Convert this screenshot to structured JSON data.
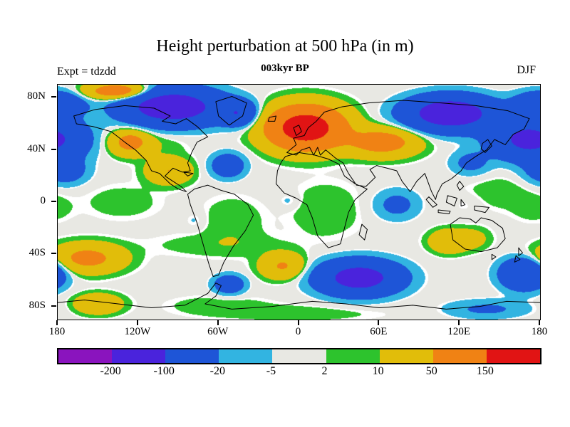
{
  "header": {
    "title": "Height perturbation at 500 hPa (in m)",
    "subtitle": "003kyr BP",
    "left_label": "Expt = tdzdd",
    "right_label": "DJF"
  },
  "chart_data": {
    "type": "heatmap",
    "title": "Height perturbation at 500 hPa (in m)",
    "subtitle": "003kyr BP",
    "experiment": "tdzdd",
    "season": "DJF",
    "units": "m",
    "projection": "equirectangular world map, lon -180..180, lat -90..90",
    "x_ticks": [
      {
        "label": "180",
        "lon": -180
      },
      {
        "label": "120W",
        "lon": -120
      },
      {
        "label": "60W",
        "lon": -60
      },
      {
        "label": "0",
        "lon": 0
      },
      {
        "label": "60E",
        "lon": 60
      },
      {
        "label": "120E",
        "lon": 120
      },
      {
        "label": "180",
        "lon": 180
      }
    ],
    "y_ticks": [
      {
        "label": "80N",
        "lat": 80
      },
      {
        "label": "40N",
        "lat": 40
      },
      {
        "label": "0",
        "lat": 0
      },
      {
        "label": "40S",
        "lat": -40
      },
      {
        "label": "80S",
        "lat": -80
      }
    ],
    "contour_levels": [
      -200,
      -100,
      -20,
      -5,
      2,
      10,
      50,
      150
    ],
    "palette": [
      "#8a14be",
      "#4a23dc",
      "#1e55d7",
      "#32b4e1",
      "#e8e8e3",
      "#2dc32d",
      "#e1bd0a",
      "#f08214",
      "#e11414"
    ],
    "colorbar_labels": [
      "-200",
      "-100",
      "-20",
      "-5",
      "2",
      "10",
      "50",
      "150"
    ],
    "anomaly_centers": [
      {
        "lon": -95,
        "lat": 73,
        "amp": -170,
        "rlon": 34,
        "rlat": 13
      },
      {
        "lon": -45,
        "lat": 68,
        "amp": -85,
        "rlon": 13,
        "rlat": 9
      },
      {
        "lon": 5,
        "lat": 57,
        "amp": 230,
        "rlon": 26,
        "rlat": 15
      },
      {
        "lon": 62,
        "lat": 46,
        "amp": 85,
        "rlon": 24,
        "rlat": 10
      },
      {
        "lon": 113,
        "lat": 68,
        "amp": -180,
        "rlon": 30,
        "rlat": 12
      },
      {
        "lon": 172,
        "lat": 48,
        "amp": -130,
        "rlon": 26,
        "rlat": 14
      },
      {
        "lon": -135,
        "lat": 85,
        "amp": 100,
        "rlon": 22,
        "rlat": 6
      },
      {
        "lon": 180,
        "lat": 75,
        "amp": -80,
        "rlon": 18,
        "rlat": 9
      },
      {
        "lon": -126,
        "lat": 46,
        "amp": 75,
        "rlon": 14,
        "rlat": 9
      },
      {
        "lon": -100,
        "lat": 45,
        "amp": 7,
        "rlon": 18,
        "rlat": 10
      },
      {
        "lon": -97,
        "lat": 24,
        "amp": 50,
        "rlon": 15,
        "rlat": 9
      },
      {
        "lon": -53,
        "lat": 28,
        "amp": -55,
        "rlon": 12,
        "rlat": 9
      },
      {
        "lon": -175,
        "lat": 24,
        "amp": -45,
        "rlon": 16,
        "rlat": 10
      },
      {
        "lon": -50,
        "lat": -15,
        "amp": 9,
        "rlon": 22,
        "rlat": 18
      },
      {
        "lon": 20,
        "lat": -6,
        "amp": 9,
        "rlon": 26,
        "rlat": 20
      },
      {
        "lon": -8,
        "lat": 1,
        "amp": -10,
        "rlon": 8,
        "rlat": 6
      },
      {
        "lon": 73,
        "lat": -2,
        "amp": -30,
        "rlon": 16,
        "rlat": 11
      },
      {
        "lon": 150,
        "lat": 8,
        "amp": 8,
        "rlon": 26,
        "rlat": 13
      },
      {
        "lon": 124,
        "lat": -2,
        "amp": -7,
        "rlon": 12,
        "rlat": 8
      },
      {
        "lon": -132,
        "lat": 0,
        "amp": 7,
        "rlon": 28,
        "rlat": 13
      },
      {
        "lon": -78,
        "lat": -14,
        "amp": -9,
        "rlon": 8,
        "rlat": 7
      },
      {
        "lon": 175,
        "lat": -5,
        "amp": 7,
        "rlon": 15,
        "rlat": 10
      },
      {
        "lon": 128,
        "lat": 30,
        "amp": -30,
        "rlon": 14,
        "rlat": 9
      },
      {
        "lon": -158,
        "lat": -43,
        "amp": 70,
        "rlon": 24,
        "rlat": 10
      },
      {
        "lon": -60,
        "lat": -33,
        "amp": 7,
        "rlon": 50,
        "rlat": 9
      },
      {
        "lon": -52,
        "lat": -63,
        "amp": -55,
        "rlon": 11,
        "rlat": 7
      },
      {
        "lon": -12,
        "lat": -49,
        "amp": 55,
        "rlon": 15,
        "rlat": 9
      },
      {
        "lon": 45,
        "lat": -58,
        "amp": -150,
        "rlon": 28,
        "rlat": 12
      },
      {
        "lon": 112,
        "lat": -30,
        "amp": 45,
        "rlon": 13,
        "rlat": 8
      },
      {
        "lon": 130,
        "lat": -28,
        "amp": 18,
        "rlon": 12,
        "rlat": 8
      },
      {
        "lon": 168,
        "lat": -55,
        "amp": -100,
        "rlon": 16,
        "rlat": 11
      },
      {
        "lon": -150,
        "lat": -78,
        "amp": 45,
        "rlon": 16,
        "rlat": 7
      },
      {
        "lon": -60,
        "lat": -79,
        "amp": 8,
        "rlon": 35,
        "rlat": 7
      },
      {
        "lon": 0,
        "lat": -85,
        "amp": 8,
        "rlon": 60,
        "rlat": 6
      },
      {
        "lon": 140,
        "lat": -82,
        "amp": -25,
        "rlon": 30,
        "rlat": 7
      }
    ]
  }
}
